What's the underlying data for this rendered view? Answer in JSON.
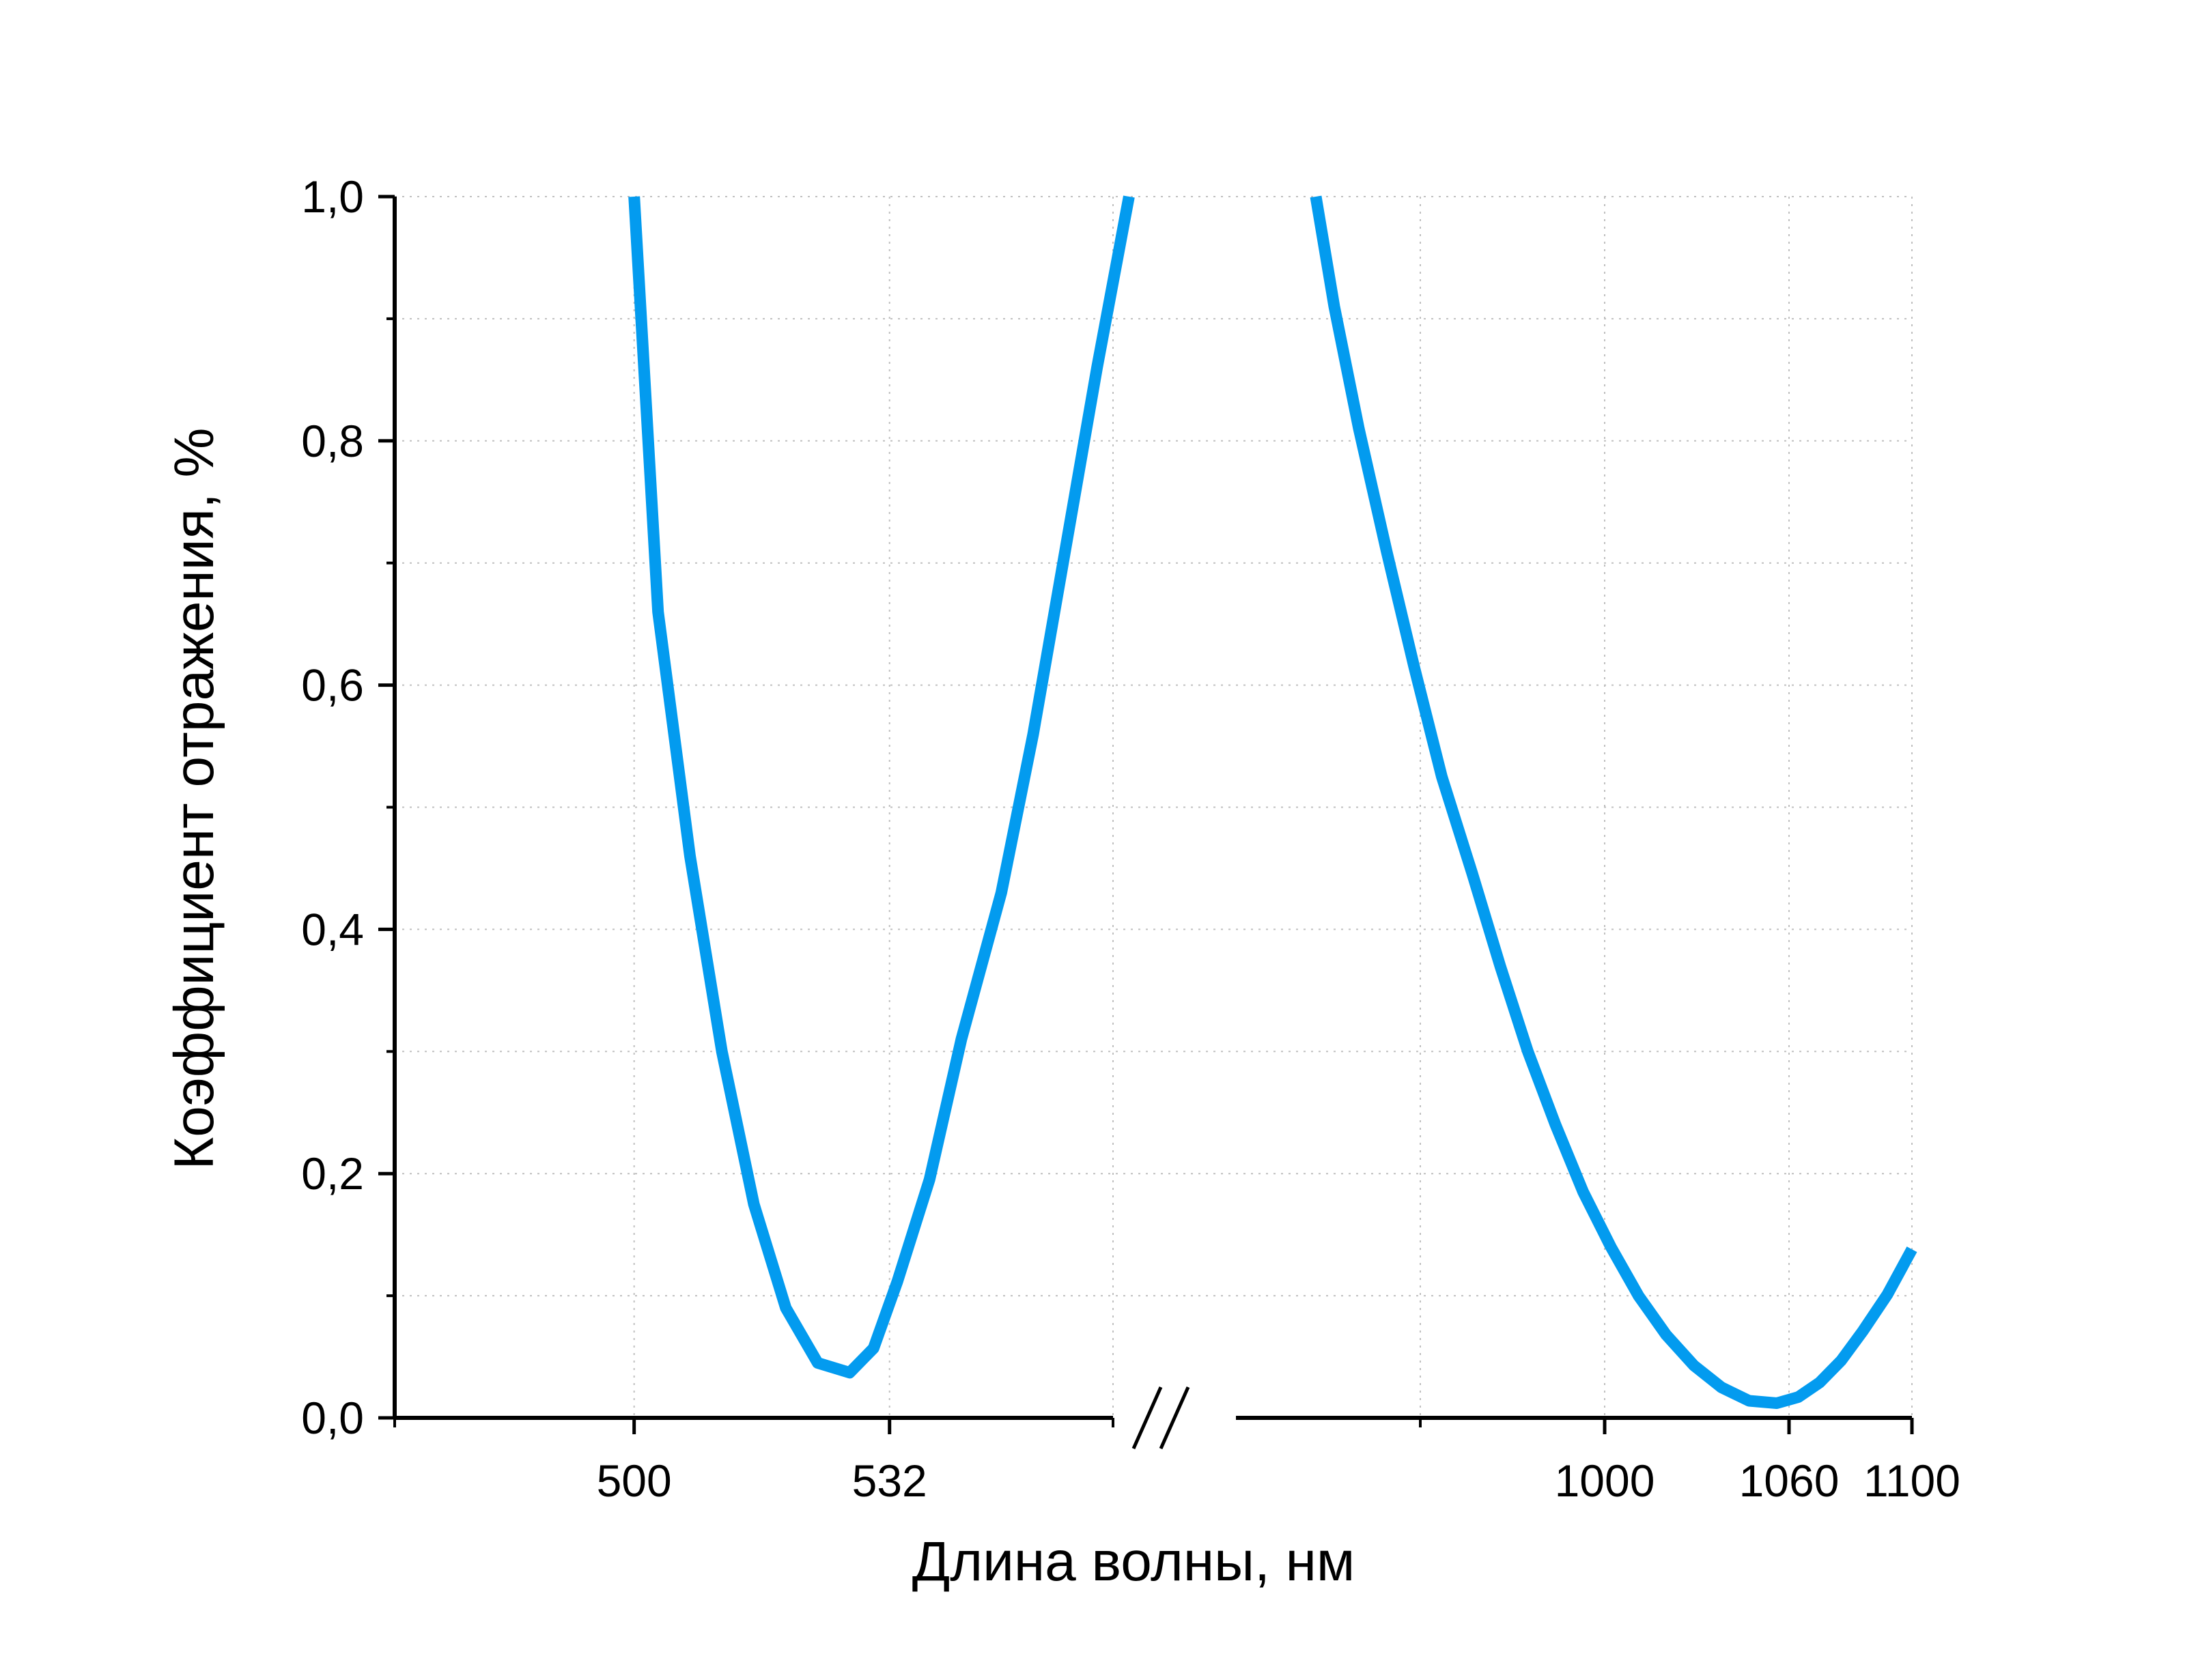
{
  "chart_data": {
    "type": "line",
    "title": "",
    "xlabel": "Длина волны, нм",
    "ylabel": "Коэффициент отражения, %",
    "ylim": [
      0,
      1.0
    ],
    "y_ticks": [
      "0,0",
      "0,2",
      "0,4",
      "0,6",
      "0,8",
      "1,0"
    ],
    "x_ticks": [
      "500",
      "532",
      "1000",
      "1060",
      "1100"
    ],
    "x_axis_break": true,
    "grid": true,
    "line_color": "#039BEF",
    "segments": [
      {
        "xlim": [
          470,
          560
        ],
        "x": [
          500,
          503,
          507,
          511,
          515,
          519,
          523,
          527,
          530,
          533,
          537,
          541,
          546,
          550,
          554,
          558,
          562
        ],
        "y": [
          1.0,
          0.66,
          0.46,
          0.3,
          0.175,
          0.09,
          0.045,
          0.037,
          0.057,
          0.112,
          0.195,
          0.31,
          0.43,
          0.56,
          0.71,
          0.86,
          1.0
        ]
      },
      {
        "xlim": [
          880,
          1100
        ],
        "x": [
          906,
          912,
          920,
          929,
          938,
          947,
          957,
          966,
          975,
          984,
          993,
          1002,
          1011,
          1020,
          1029,
          1038,
          1047,
          1056,
          1063,
          1070,
          1077,
          1084,
          1092,
          1100
        ],
        "y": [
          1.0,
          0.91,
          0.81,
          0.71,
          0.615,
          0.525,
          0.445,
          0.37,
          0.3,
          0.24,
          0.185,
          0.14,
          0.1,
          0.068,
          0.043,
          0.025,
          0.014,
          0.012,
          0.017,
          0.029,
          0.047,
          0.071,
          0.101,
          0.138
        ]
      }
    ]
  }
}
